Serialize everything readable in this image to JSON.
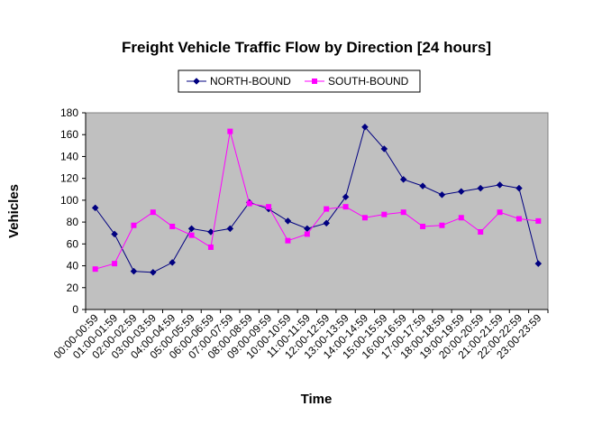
{
  "chart_data": {
    "type": "line",
    "title": "Freight Vehicle Traffic Flow by Direction [24 hours]",
    "xlabel": "Time",
    "ylabel": "Vehicles",
    "ylim": [
      0,
      180
    ],
    "yticks": [
      0,
      20,
      40,
      60,
      80,
      100,
      120,
      140,
      160,
      180
    ],
    "grid": false,
    "legend_position": "top",
    "plot_background": "#c0c0c0",
    "categories": [
      "00:00-00:59",
      "01:00-01:59",
      "02:00-02:59",
      "03:00-03:59",
      "04:00-04:59",
      "05:00-05:59",
      "06:00-06:59",
      "07:00-07:59",
      "08:00-08:59",
      "09:00-09:59",
      "10:00-10:59",
      "11:00-11:59",
      "12:00-12:59",
      "13:00-13:59",
      "14:00-14:59",
      "15:00-15:59",
      "16:00-16:59",
      "17:00-17:59",
      "18:00-18:59",
      "19:00-19:59",
      "20:00-20:59",
      "21:00-21:59",
      "22:00-22:59",
      "23:00-23:59"
    ],
    "series": [
      {
        "name": "NORTH-BOUND",
        "color": "#000080",
        "marker": "diamond",
        "values": [
          93,
          69,
          35,
          34,
          43,
          74,
          71,
          74,
          98,
          92,
          81,
          74,
          79,
          103,
          167,
          147,
          119,
          113,
          105,
          108,
          111,
          114,
          111,
          42
        ]
      },
      {
        "name": "SOUTH-BOUND",
        "color": "#ff00ff",
        "marker": "square",
        "values": [
          37,
          42,
          77,
          89,
          76,
          68,
          57,
          163,
          97,
          94,
          63,
          69,
          92,
          94,
          84,
          87,
          89,
          76,
          77,
          84,
          71,
          89,
          83,
          81
        ]
      }
    ]
  }
}
